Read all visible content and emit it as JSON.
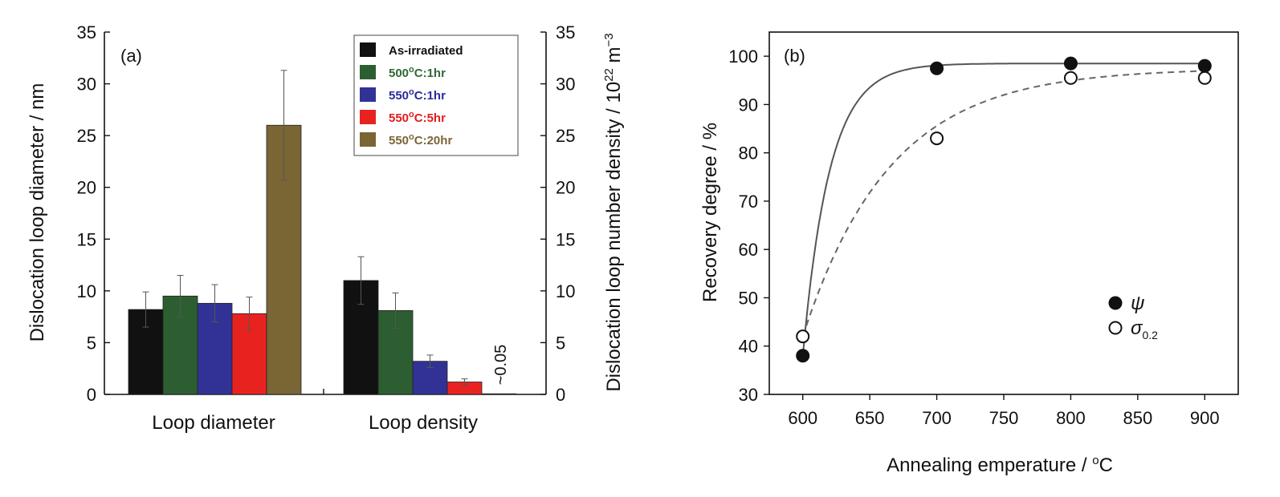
{
  "chart_data": [
    {
      "type": "bar",
      "panel_label": "(a)",
      "categories": [
        "Loop diameter",
        "Loop density"
      ],
      "ylabel": "Dislocation loop diameter / nm",
      "y2label": "Dislocation loop number density / 10",
      "y2label_exp": "22",
      "y2label_unit": " m",
      "y2label_unit_exp": "−3",
      "ylim": [
        0,
        35
      ],
      "y2lim": [
        0,
        35
      ],
      "yticks": [
        0,
        5,
        10,
        15,
        20,
        25,
        30,
        35
      ],
      "legend_position": "top-right",
      "series": [
        {
          "name": "As-irradiated",
          "sup": "",
          "rest": "",
          "color": "#111111",
          "textcolor": "#111111",
          "values": [
            8.2,
            11.0
          ],
          "errors": [
            1.7,
            2.3
          ]
        },
        {
          "name": "500",
          "sup": "o",
          "rest": "C:1hr",
          "color": "#2d5e32",
          "textcolor": "#2d6a35",
          "values": [
            9.5,
            8.1
          ],
          "errors": [
            2.0,
            1.7
          ]
        },
        {
          "name": "550",
          "sup": "o",
          "rest": "C:1hr",
          "color": "#323296",
          "textcolor": "#2a2a9a",
          "values": [
            8.8,
            3.2
          ],
          "errors": [
            1.8,
            0.6
          ]
        },
        {
          "name": "550",
          "sup": "o",
          "rest": "C:5hr",
          "color": "#e8231f",
          "textcolor": "#e01c1c",
          "values": [
            7.8,
            1.2
          ],
          "errors": [
            1.6,
            0.3
          ]
        },
        {
          "name": "550",
          "sup": "o",
          "rest": "C:20hr",
          "color": "#7a6535",
          "textcolor": "#7a6535",
          "values": [
            26.0,
            0.05
          ],
          "errors": [
            5.3,
            0
          ]
        }
      ],
      "annotation": "~0.05"
    },
    {
      "type": "scatter",
      "panel_label": "(b)",
      "xlabel": "Annealing emperature / ",
      "xlabel_unit_sup": "o",
      "xlabel_unit": "C",
      "ylabel": "Recovery degree / %",
      "xlim": [
        575,
        925
      ],
      "ylim": [
        30,
        105
      ],
      "xticks": [
        600,
        650,
        700,
        750,
        800,
        850,
        900
      ],
      "yticks": [
        30,
        40,
        50,
        60,
        70,
        80,
        90,
        100
      ],
      "legend_position": "bottom-right",
      "series": [
        {
          "name": "ψ",
          "sub": "",
          "marker": "filled-circle",
          "line": "solid",
          "x": [
            600,
            700,
            800,
            900
          ],
          "y": [
            38,
            97.5,
            98.5,
            98
          ]
        },
        {
          "name": "σ",
          "sub": "0.2",
          "marker": "open-circle",
          "line": "dashed",
          "x": [
            600,
            700,
            800,
            900
          ],
          "y": [
            42,
            83,
            95.5,
            95.5
          ]
        }
      ]
    }
  ]
}
